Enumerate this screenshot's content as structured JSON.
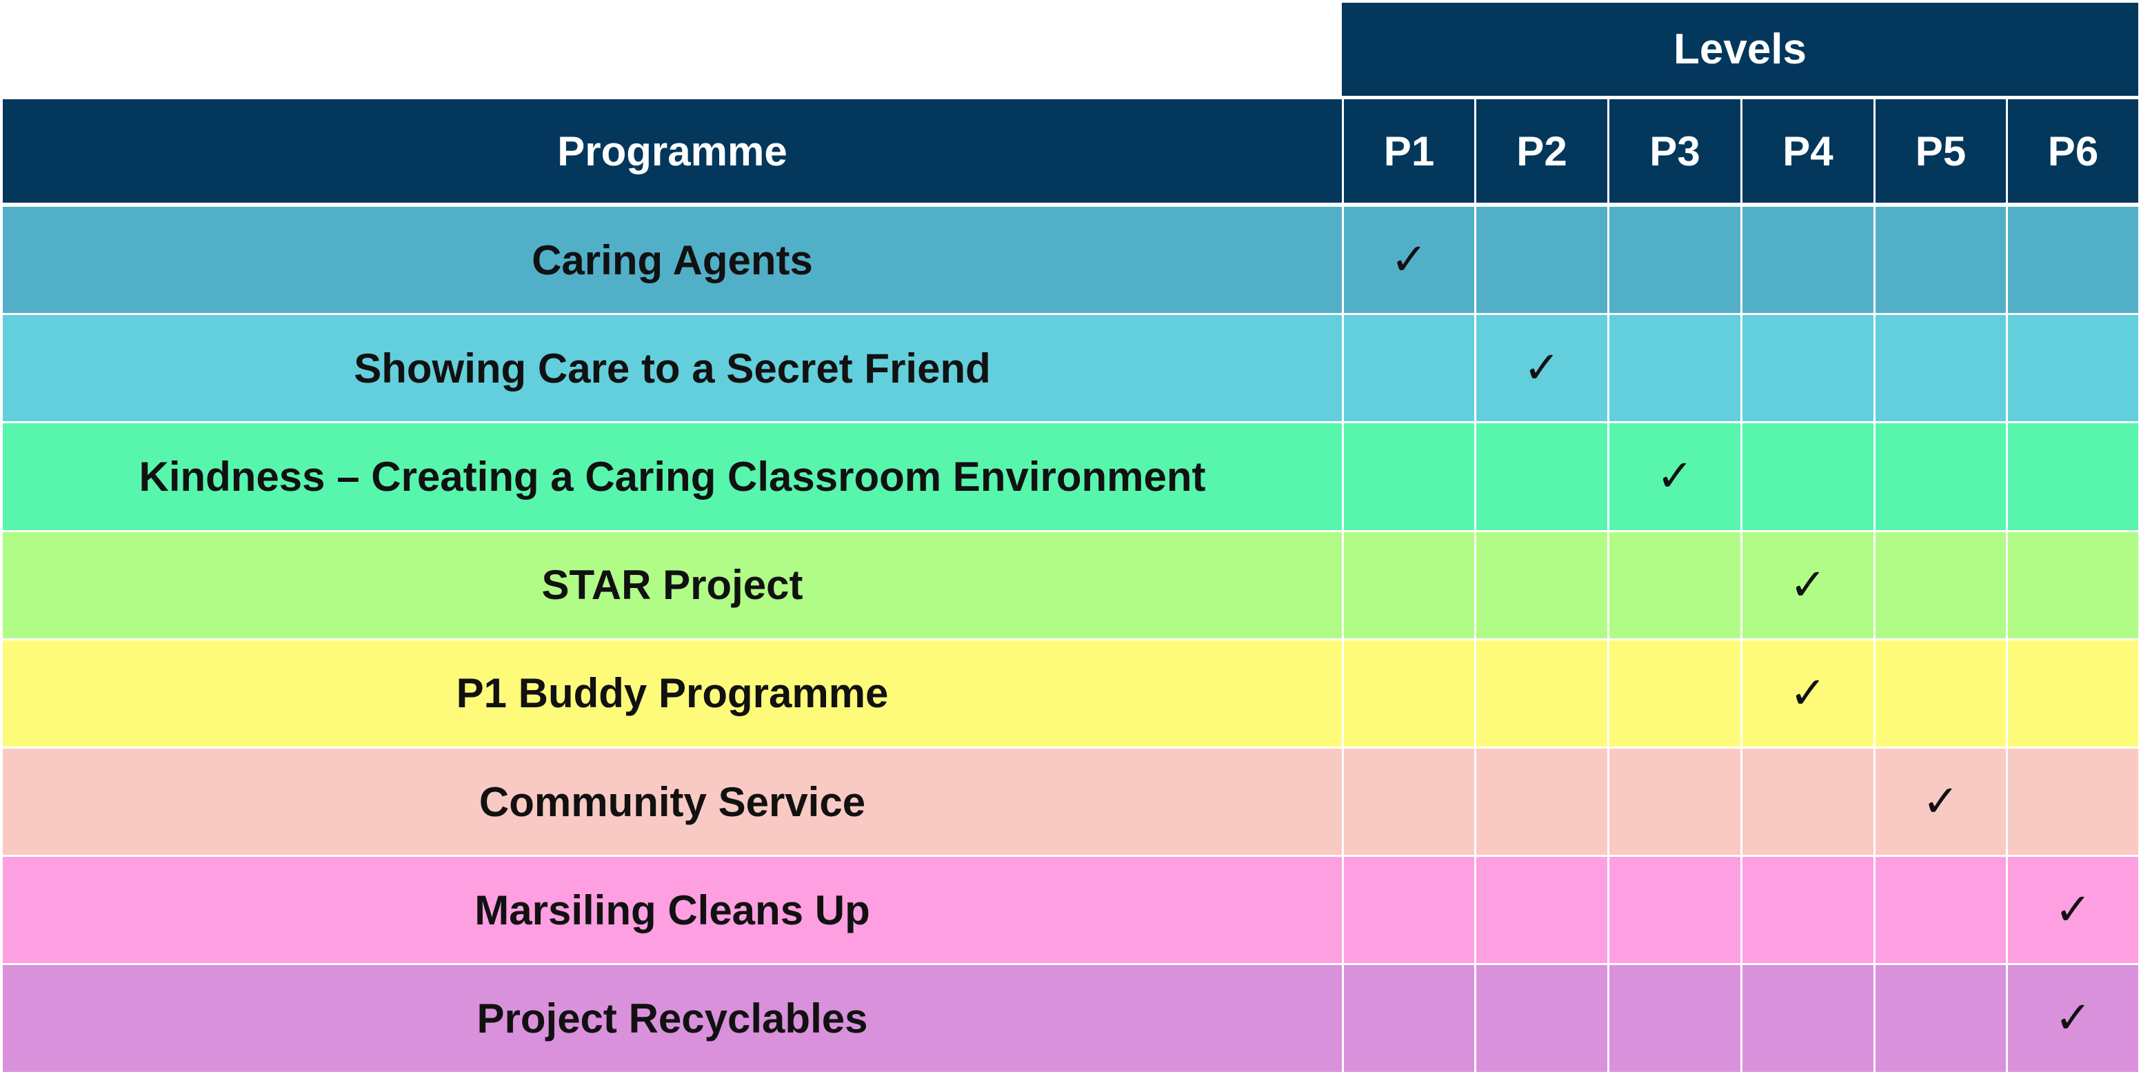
{
  "table": {
    "levels_header": "Levels",
    "programme_header": "Programme",
    "levels": [
      "P1",
      "P2",
      "P3",
      "P4",
      "P5",
      "P6"
    ],
    "check_glyph": "✓",
    "rows": [
      {
        "programme": "Caring Agents",
        "levels": [
          "P1"
        ],
        "color": "#52afc8"
      },
      {
        "programme": "Showing Care to a Secret Friend",
        "levels": [
          "P2"
        ],
        "color": "#63cfdc"
      },
      {
        "programme": "Kindness – Creating a Caring Classroom Environment",
        "levels": [
          "P3"
        ],
        "color": "#58f5ad"
      },
      {
        "programme": "STAR Project",
        "levels": [
          "P4"
        ],
        "color": "#b0fc87"
      },
      {
        "programme": "P1 Buddy Programme",
        "levels": [
          "P4"
        ],
        "color": "#fefb7b"
      },
      {
        "programme": "Community Service",
        "levels": [
          "P5"
        ],
        "color": "#f8cac3"
      },
      {
        "programme": "Marsiling Cleans Up",
        "levels": [
          "P6"
        ],
        "color": "#fe9fe2"
      },
      {
        "programme": "Project Recyclables",
        "levels": [
          "P6"
        ],
        "color": "#da91dc"
      }
    ]
  }
}
